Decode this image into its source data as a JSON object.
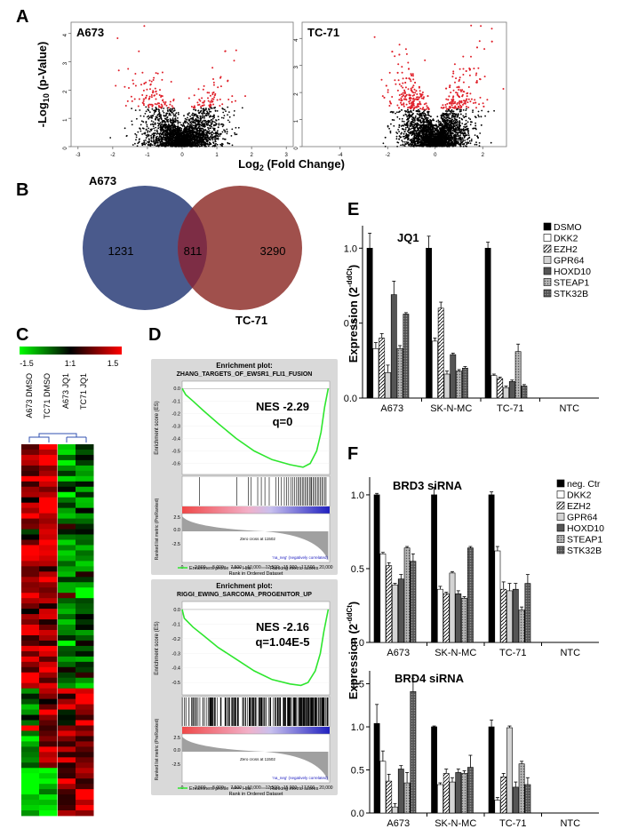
{
  "panel_letters": {
    "a": "A",
    "b": "B",
    "c": "C",
    "d": "D",
    "e": "E",
    "f": "F"
  },
  "chart_data": [
    {
      "id": "volcano_a673",
      "type": "scatter",
      "title": "A673",
      "ylabel": "-Log10 (p-Value)",
      "xlabel": "Log2 (Fold Change)",
      "x_ticks": [
        "-3",
        "-2",
        "-1",
        "0",
        "1",
        "2",
        "3"
      ],
      "y_ticks": [
        "0",
        "1",
        "2",
        "3",
        "4"
      ],
      "xlim": [
        -3.2,
        3.2
      ],
      "ylim": [
        0,
        4.4
      ],
      "colors": {
        "significant": "#e0202a",
        "other": "#000000"
      }
    },
    {
      "id": "volcano_tc71",
      "type": "scatter",
      "title": "TC-71",
      "x_ticks": [
        "-4",
        "-2",
        "0",
        "2"
      ],
      "y_ticks": [
        "0",
        "1",
        "2",
        "3",
        "4"
      ],
      "xlim": [
        -5.6,
        3.0
      ],
      "ylim": [
        0,
        4.6
      ],
      "colors": {
        "significant": "#e0202a",
        "other": "#000000"
      }
    },
    {
      "id": "venn",
      "type": "venn",
      "sets": [
        {
          "label": "A673",
          "unique": "1231",
          "color": "#4a5a8c"
        },
        {
          "label": "TC-71",
          "unique": "3290",
          "color": "#a0504c"
        }
      ],
      "overlap": "811",
      "overlap_color": "#7d2d45"
    },
    {
      "id": "heatmap",
      "type": "heatmap",
      "legend_ticks": [
        "-1.5",
        "1:1",
        "1.5"
      ],
      "columns": [
        "A673 DMSO",
        "TC71 DMSO",
        "A673 JQ1",
        "TC71 JQ1"
      ]
    },
    {
      "id": "gsea_1",
      "type": "line",
      "header": "Enrichment plot:",
      "title": "ZHANG_TARGETS_OF_EWSR1_FLI1_FUSION",
      "nes": "NES -2.29",
      "q": "q=0",
      "es_label": "Enrichment score (ES)",
      "es_ticks": [
        "0.0",
        "-0.1",
        "-0.2",
        "-0.3",
        "-0.4",
        "-0.5",
        "-0.6"
      ],
      "es_range": [
        -0.66,
        0.03
      ],
      "es_curve": [
        [
          0,
          0
        ],
        [
          500,
          -0.05
        ],
        [
          1500,
          -0.1
        ],
        [
          3000,
          -0.18
        ],
        [
          5000,
          -0.28
        ],
        [
          7500,
          -0.4
        ],
        [
          10000,
          -0.5
        ],
        [
          12500,
          -0.57
        ],
        [
          15000,
          -0.61
        ],
        [
          16800,
          -0.63
        ],
        [
          17800,
          -0.6
        ],
        [
          18700,
          -0.5
        ],
        [
          19300,
          -0.35
        ],
        [
          19800,
          -0.15
        ],
        [
          20300,
          0
        ]
      ],
      "hits": [
        2400,
        7600,
        9200,
        9600,
        10500,
        11000,
        11500,
        12100,
        13000,
        13400,
        13800,
        14200,
        14500,
        14800,
        15100,
        15400,
        15600,
        15900,
        16100,
        16300,
        16500,
        16700,
        16900,
        17100,
        17300,
        17500,
        17700,
        17900,
        18000,
        18200,
        18400,
        18600,
        18800,
        19000,
        19200,
        19400,
        19600,
        19800,
        20000
      ],
      "rank_label": "Ranked list metric (PreRanked)",
      "rank_ticks": [
        "2.5",
        "0.0",
        "-2.5"
      ],
      "pos_label": "'na_pos' (positively correlated)",
      "neg_label": "'na_neg' (negatively correlated)",
      "zero_cross": "Zero cross at 11502",
      "x_ticks": [
        "0",
        "2,500",
        "5,000",
        "7,500",
        "10,000",
        "12,500",
        "15,000",
        "17,500",
        "20,000"
      ],
      "xlabel": "Rank in Ordered Dataset",
      "legend": [
        "Enrichment profile",
        "Hits",
        "Ranking metric scores"
      ]
    },
    {
      "id": "gsea_2",
      "type": "line",
      "header": "Enrichment plot:",
      "title": "RIGGI_EWING_SARCOMA_PROGENITOR_UP",
      "nes": "NES -2.16",
      "q": "q=1.04E-5",
      "es_label": "Enrichment score (ES)",
      "es_ticks": [
        "0.0",
        "-0.1",
        "-0.2",
        "-0.3",
        "-0.4",
        "-0.5"
      ],
      "es_range": [
        -0.56,
        0.03
      ],
      "es_curve": [
        [
          0,
          0
        ],
        [
          300,
          -0.06
        ],
        [
          1500,
          -0.12
        ],
        [
          3000,
          -0.18
        ],
        [
          5000,
          -0.26
        ],
        [
          7500,
          -0.34
        ],
        [
          10000,
          -0.42
        ],
        [
          12500,
          -0.48
        ],
        [
          15000,
          -0.51
        ],
        [
          16500,
          -0.52
        ],
        [
          17500,
          -0.5
        ],
        [
          18500,
          -0.42
        ],
        [
          19200,
          -0.3
        ],
        [
          19700,
          -0.15
        ],
        [
          20300,
          0
        ]
      ],
      "hits_dense": true,
      "rank_label": "Ranked list metric (PreRanked)",
      "rank_ticks": [
        "2.5",
        "0.0",
        "-2.5"
      ],
      "pos_label": "'na_pos' (positively correlated)",
      "neg_label": "'na_neg' (negatively correlated)",
      "zero_cross": "Zero cross at 11502",
      "x_ticks": [
        "0",
        "2,500",
        "5,000",
        "7,500",
        "10,000",
        "12,500",
        "15,000",
        "17,500",
        "20,000"
      ],
      "xlabel": "Rank in Ordered Dataset",
      "legend": [
        "Enrichment profile",
        "Hits",
        "Ranking metric scores"
      ]
    },
    {
      "id": "bar_jq1",
      "type": "bar",
      "title": "JQ1",
      "ylabel": "Expression (2-ddCt)",
      "categories": [
        "A673",
        "SK-N-MC",
        "TC-71",
        "NTC"
      ],
      "y_ticks": [
        "0.0",
        "0.5",
        "1.0"
      ],
      "ylim": [
        0,
        1.15
      ],
      "series": [
        {
          "name": "DSMO",
          "values": [
            1.0,
            1.0,
            1.0,
            0
          ],
          "err": [
            0.1,
            0.08,
            0.04,
            0
          ]
        },
        {
          "name": "DKK2",
          "values": [
            0.33,
            0.38,
            0.15,
            0
          ],
          "err": [
            0.04,
            0.02,
            0.01,
            0
          ]
        },
        {
          "name": "EZH2",
          "values": [
            0.4,
            0.6,
            0.13,
            0
          ],
          "err": [
            0.03,
            0.04,
            0.01,
            0
          ]
        },
        {
          "name": "GPR64",
          "values": [
            0.17,
            0.16,
            0.07,
            0
          ],
          "err": [
            0.05,
            0.02,
            0.01,
            0
          ]
        },
        {
          "name": "HOXD10",
          "values": [
            0.69,
            0.29,
            0.11,
            0
          ],
          "err": [
            0.09,
            0.01,
            0.01,
            0
          ]
        },
        {
          "name": "STEAP1",
          "values": [
            0.33,
            0.18,
            0.31,
            0
          ],
          "err": [
            0.02,
            0.01,
            0.05,
            0
          ]
        },
        {
          "name": "STK32B",
          "values": [
            0.56,
            0.2,
            0.08,
            0
          ],
          "err": [
            0.01,
            0.01,
            0.01,
            0
          ]
        }
      ]
    },
    {
      "id": "bar_brd3",
      "type": "bar",
      "title": "BRD3 siRNA",
      "categories": [
        "A673",
        "SK-N-MC",
        "TC-71",
        "NTC"
      ],
      "y_ticks": [
        "0.0",
        "0.5",
        "1.0"
      ],
      "ylim": [
        0,
        1.12
      ],
      "series": [
        {
          "name": "neg. Ctr",
          "values": [
            1.0,
            1.0,
            1.0,
            0
          ],
          "err": [
            0.01,
            0.05,
            0.02,
            0
          ]
        },
        {
          "name": "DKK2",
          "values": [
            0.6,
            0.36,
            0.62,
            0
          ],
          "err": [
            0.01,
            0.02,
            0.03,
            0
          ]
        },
        {
          "name": "EZH2",
          "values": [
            0.52,
            0.33,
            0.36,
            0
          ],
          "err": [
            0.02,
            0.01,
            0.05,
            0
          ]
        },
        {
          "name": "GPR64",
          "values": [
            0.39,
            0.47,
            0.35,
            0
          ],
          "err": [
            0.01,
            0.01,
            0.05,
            0
          ]
        },
        {
          "name": "HOXD10",
          "values": [
            0.43,
            0.33,
            0.36,
            0
          ],
          "err": [
            0.03,
            0.02,
            0.04,
            0
          ]
        },
        {
          "name": "STEAP1",
          "values": [
            0.64,
            0.3,
            0.22,
            0
          ],
          "err": [
            0.01,
            0.01,
            0.02,
            0
          ]
        },
        {
          "name": "STK32B",
          "values": [
            0.55,
            0.64,
            0.4,
            0
          ],
          "err": [
            0.05,
            0.01,
            0.06,
            0
          ]
        }
      ]
    },
    {
      "id": "bar_brd4",
      "type": "bar",
      "title": "BRD4  siRNA",
      "ylabel": "Expression (2-ddCt)",
      "categories": [
        "A673",
        "SK-N-MC",
        "TC-71",
        "NTC"
      ],
      "y_ticks": [
        "0.0",
        "0.5",
        "1.0",
        "1.5"
      ],
      "ylim": [
        0,
        1.65
      ],
      "series": [
        {
          "name": "neg. Ctr",
          "values": [
            1.04,
            1.0,
            1.0,
            0
          ],
          "err": [
            0.22,
            0.01,
            0.08,
            0
          ]
        },
        {
          "name": "DKK2",
          "values": [
            0.6,
            0.33,
            0.15,
            0
          ],
          "err": [
            0.12,
            0.02,
            0.03,
            0
          ]
        },
        {
          "name": "EZH2",
          "values": [
            0.37,
            0.46,
            0.42,
            0
          ],
          "err": [
            0.08,
            0.05,
            0.04,
            0
          ]
        },
        {
          "name": "GPR64",
          "values": [
            0.07,
            0.36,
            0.99,
            0
          ],
          "err": [
            0.04,
            0.05,
            0.02,
            0
          ]
        },
        {
          "name": "HOXD10",
          "values": [
            0.51,
            0.47,
            0.3,
            0
          ],
          "err": [
            0.04,
            0.04,
            0.06,
            0
          ]
        },
        {
          "name": "STEAP1",
          "values": [
            0.35,
            0.46,
            0.57,
            0
          ],
          "err": [
            0.12,
            0.03,
            0.03,
            0
          ]
        },
        {
          "name": "STK32B",
          "values": [
            1.41,
            0.53,
            0.33,
            0
          ],
          "err": [
            0.15,
            0.14,
            0.08,
            0
          ]
        }
      ]
    }
  ]
}
